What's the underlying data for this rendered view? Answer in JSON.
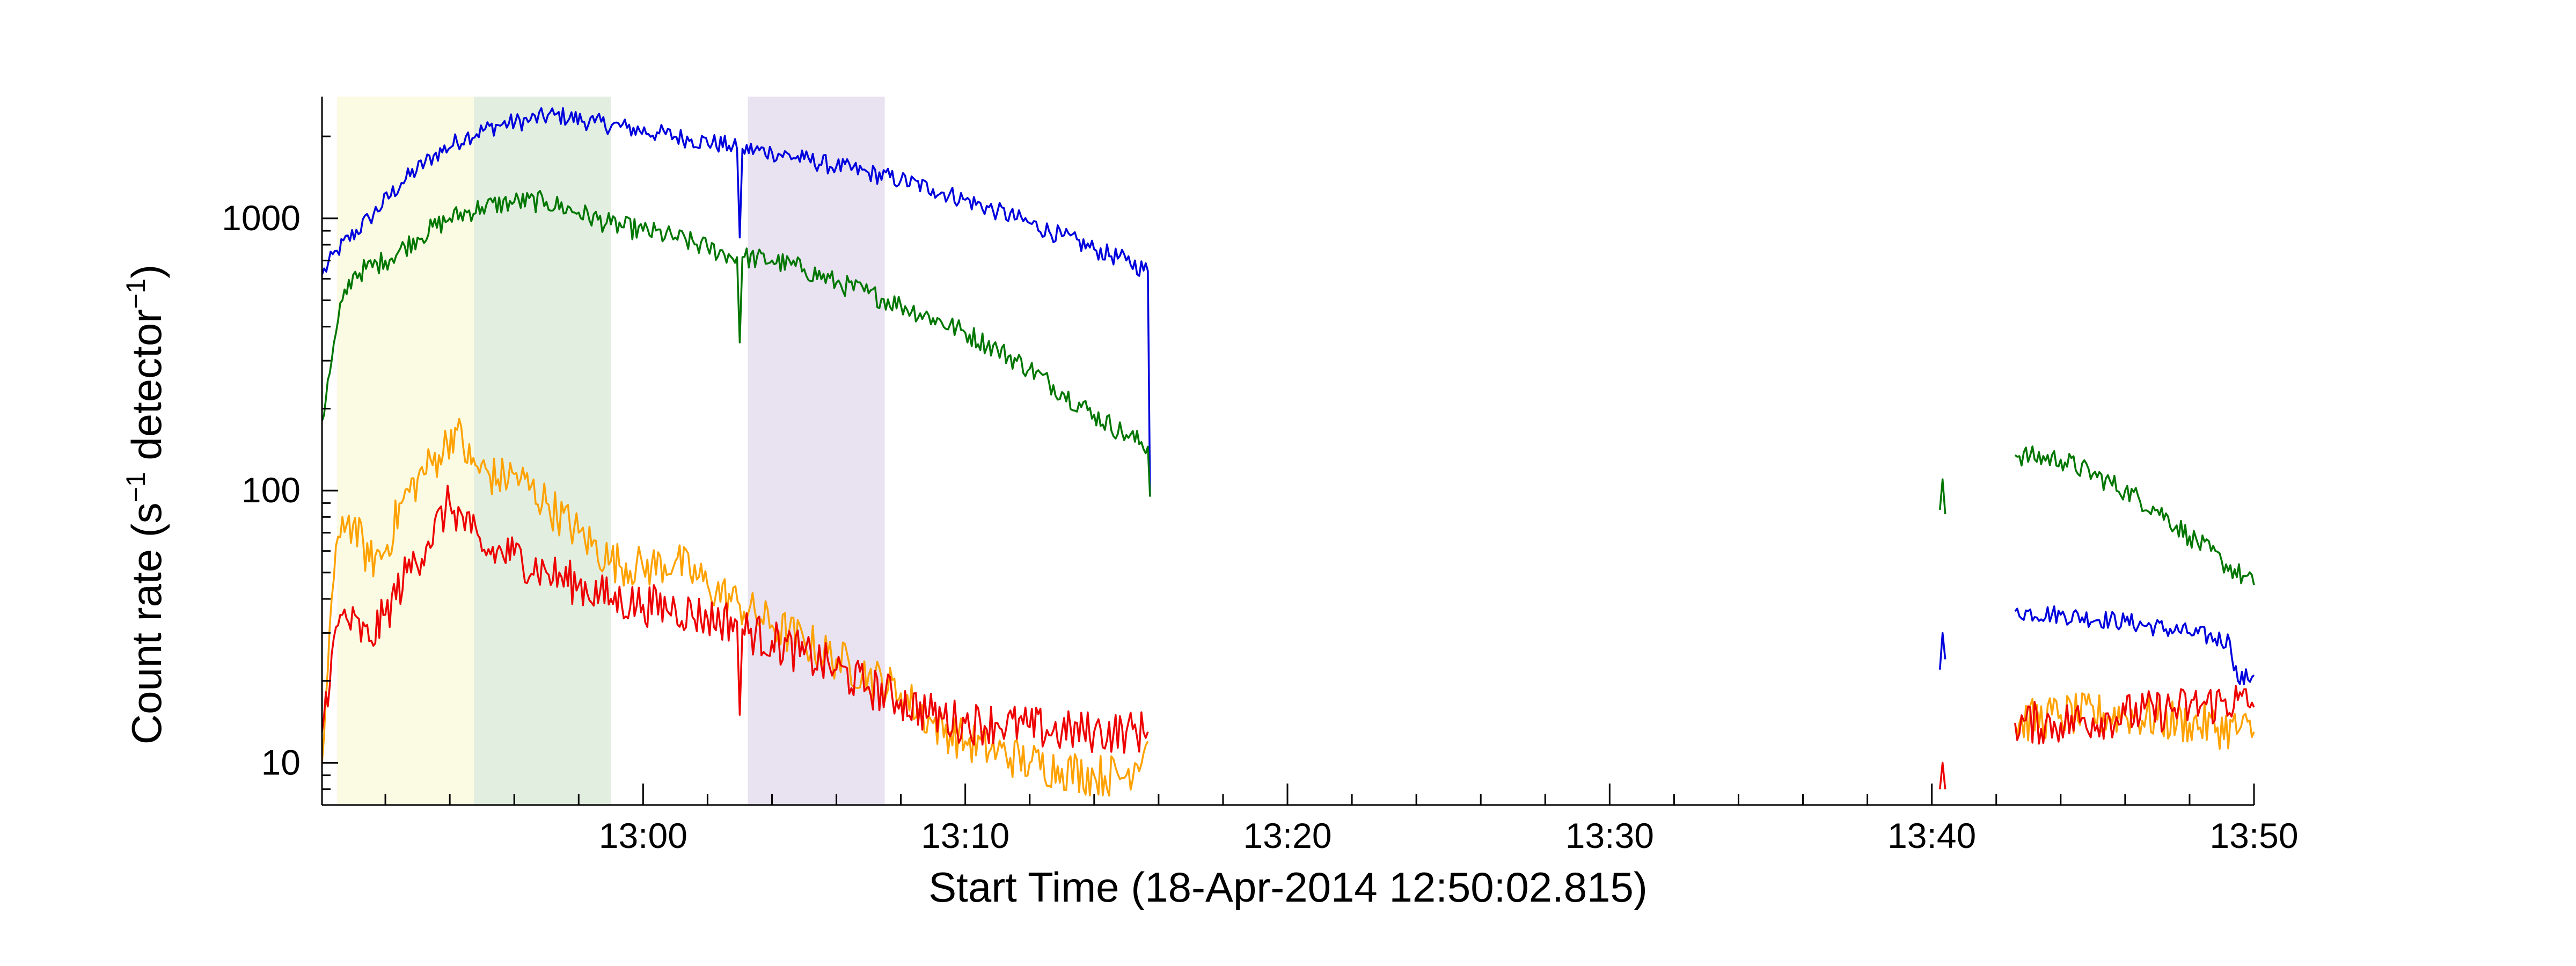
{
  "chart_data": {
    "type": "line",
    "xlabel": "Start Time (18-Apr-2014 12:50:02.815)",
    "ylabel": {
      "prefix": "Count rate (s",
      "sup1": "−1",
      "middle": " detector",
      "sup2": "−1",
      "suffix": ")"
    },
    "y_scale": "log",
    "ylim": [
      7,
      2800
    ],
    "y_ticks": [
      {
        "value": 10,
        "label": "10"
      },
      {
        "value": 100,
        "label": "100"
      },
      {
        "value": 1000,
        "label": "1000"
      }
    ],
    "xlim": [
      "12:50:02",
      "13:50:00"
    ],
    "x_ticks": [
      {
        "time": "13:00",
        "label": "13:00"
      },
      {
        "time": "13:10",
        "label": "13:10"
      },
      {
        "time": "13:20",
        "label": "13:20"
      },
      {
        "time": "13:30",
        "label": "13:30"
      },
      {
        "time": "13:40",
        "label": "13:40"
      },
      {
        "time": "13:50",
        "label": "13:50"
      }
    ],
    "grid": false,
    "legend": "none",
    "shaded_intervals": [
      {
        "start": "12:50:30",
        "end": "12:54:45",
        "color": "#fafbe2"
      },
      {
        "start": "12:54:45",
        "end": "12:59:00",
        "color": "#e2eee0"
      },
      {
        "start": "13:03:15",
        "end": "13:07:30",
        "color": "#e8e2f1"
      }
    ],
    "series": [
      {
        "color": "#0000dd",
        "noise": 0.035,
        "segments": [
          [
            [
              "12:50:02",
              620
            ],
            [
              "12:50:30",
              760
            ],
            [
              "12:51:30",
              1000
            ],
            [
              "12:52:30",
              1350
            ],
            [
              "12:53:30",
              1700
            ],
            [
              "12:54:30",
              2000
            ],
            [
              "12:55:30",
              2200
            ],
            [
              "12:56:30",
              2300
            ],
            [
              "12:57:15",
              2400
            ],
            [
              "12:58:30",
              2250
            ],
            [
              "12:59:30",
              2150
            ],
            [
              "13:00:30",
              2050
            ],
            [
              "13:01:30",
              1950
            ],
            [
              "13:02:40",
              1850
            ],
            [
              "13:02:55",
              1800
            ],
            [
              "13:03:00",
              850
            ],
            [
              "13:03:05",
              1800
            ],
            [
              "13:04:00",
              1750
            ],
            [
              "13:05:00",
              1650
            ],
            [
              "13:06:00",
              1550
            ],
            [
              "13:07:00",
              1470
            ],
            [
              "13:08:00",
              1380
            ],
            [
              "13:09:00",
              1280
            ],
            [
              "13:10:00",
              1170
            ],
            [
              "13:11:00",
              1060
            ],
            [
              "13:12:00",
              960
            ],
            [
              "13:13:00",
              860
            ],
            [
              "13:14:00",
              770
            ],
            [
              "13:15:00",
              700
            ],
            [
              "13:15:40",
              640
            ],
            [
              "13:15:44",
              95
            ]
          ],
          [
            [
              "13:40:15",
              22
            ],
            [
              "13:40:20",
              30
            ],
            [
              "13:40:25",
              24
            ]
          ],
          [
            [
              "13:42:35",
              36
            ],
            [
              "13:44:00",
              35
            ],
            [
              "13:46:00",
              33
            ],
            [
              "13:48:00",
              30
            ],
            [
              "13:49:15",
              28
            ],
            [
              "13:49:30",
              20
            ],
            [
              "13:50:00",
              21
            ]
          ]
        ]
      },
      {
        "color": "#007700",
        "noise": 0.04,
        "segments": [
          [
            [
              "12:50:02",
              180
            ],
            [
              "12:50:20",
              300
            ],
            [
              "12:50:40",
              500
            ],
            [
              "12:51:00",
              620
            ],
            [
              "12:52:00",
              700
            ],
            [
              "12:53:00",
              850
            ],
            [
              "12:54:00",
              1000
            ],
            [
              "12:55:00",
              1100
            ],
            [
              "12:56:00",
              1150
            ],
            [
              "12:57:00",
              1150
            ],
            [
              "12:58:00",
              1050
            ],
            [
              "12:59:00",
              950
            ],
            [
              "13:00:00",
              900
            ],
            [
              "13:01:00",
              850
            ],
            [
              "13:02:00",
              780
            ],
            [
              "13:02:55",
              720
            ],
            [
              "13:03:00",
              350
            ],
            [
              "13:03:05",
              720
            ],
            [
              "13:04:00",
              700
            ],
            [
              "13:05:00",
              650
            ],
            [
              "13:06:00",
              580
            ],
            [
              "13:07:00",
              530
            ],
            [
              "13:08:00",
              480
            ],
            [
              "13:09:00",
              430
            ],
            [
              "13:10:00",
              380
            ],
            [
              "13:11:00",
              330
            ],
            [
              "13:12:00",
              280
            ],
            [
              "13:13:00",
              230
            ],
            [
              "13:14:00",
              190
            ],
            [
              "13:15:00",
              160
            ],
            [
              "13:15:40",
              145
            ],
            [
              "13:15:44",
              95
            ]
          ],
          [
            [
              "13:40:15",
              85
            ],
            [
              "13:40:20",
              110
            ],
            [
              "13:40:25",
              82
            ]
          ],
          [
            [
              "13:42:35",
              135
            ],
            [
              "13:44:00",
              130
            ],
            [
              "13:45:00",
              115
            ],
            [
              "13:46:00",
              100
            ],
            [
              "13:47:00",
              85
            ],
            [
              "13:48:00",
              68
            ],
            [
              "13:49:00",
              55
            ],
            [
              "13:50:00",
              45
            ]
          ]
        ]
      },
      {
        "color": "#ffa200",
        "noise": 0.08,
        "segments": [
          [
            [
              "12:50:02",
              10
            ],
            [
              "12:50:20",
              40
            ],
            [
              "12:50:40",
              80
            ],
            [
              "12:51:00",
              75
            ],
            [
              "12:51:30",
              55
            ],
            [
              "12:52:00",
              60
            ],
            [
              "12:52:30",
              90
            ],
            [
              "12:53:00",
              110
            ],
            [
              "12:53:40",
              135
            ],
            [
              "12:54:10",
              170
            ],
            [
              "12:54:40",
              125
            ],
            [
              "12:55:30",
              110
            ],
            [
              "12:56:00",
              115
            ],
            [
              "12:57:00",
              90
            ],
            [
              "12:58:00",
              70
            ],
            [
              "12:59:00",
              55
            ],
            [
              "13:00:00",
              52
            ],
            [
              "13:01:00",
              55
            ],
            [
              "13:02:00",
              45
            ],
            [
              "13:03:00",
              38
            ],
            [
              "13:04:00",
              32
            ],
            [
              "13:05:00",
              28
            ],
            [
              "13:06:00",
              24
            ],
            [
              "13:07:00",
              21
            ],
            [
              "13:08:00",
              18
            ],
            [
              "13:09:00",
              14
            ],
            [
              "13:10:00",
              12
            ],
            [
              "13:11:00",
              11
            ],
            [
              "13:12:00",
              10
            ],
            [
              "13:13:00",
              9.5
            ],
            [
              "13:14:00",
              9
            ],
            [
              "13:15:00",
              9
            ],
            [
              "13:15:40",
              12
            ]
          ],
          [
            [
              "13:42:35",
              14
            ],
            [
              "13:44:00",
              15
            ],
            [
              "13:46:00",
              15
            ],
            [
              "13:48:00",
              14
            ],
            [
              "13:50:00",
              13
            ]
          ]
        ]
      },
      {
        "color": "#ee0000",
        "noise": 0.08,
        "segments": [
          [
            [
              "12:50:02",
              13
            ],
            [
              "12:50:20",
              25
            ],
            [
              "12:50:40",
              35
            ],
            [
              "12:51:30",
              28
            ],
            [
              "12:52:00",
              35
            ],
            [
              "12:52:40",
              50
            ],
            [
              "12:53:20",
              65
            ],
            [
              "12:54:00",
              90
            ],
            [
              "12:54:40",
              70
            ],
            [
              "12:55:00",
              60
            ],
            [
              "12:56:00",
              58
            ],
            [
              "12:57:00",
              50
            ],
            [
              "12:58:00",
              45
            ],
            [
              "12:59:00",
              40
            ],
            [
              "13:00:00",
              38
            ],
            [
              "13:01:00",
              37
            ],
            [
              "13:02:00",
              34
            ],
            [
              "13:02:55",
              33
            ],
            [
              "13:03:00",
              15
            ],
            [
              "13:03:05",
              31
            ],
            [
              "13:04:00",
              28
            ],
            [
              "13:05:00",
              25
            ],
            [
              "13:06:00",
              22
            ],
            [
              "13:07:00",
              19
            ],
            [
              "13:08:00",
              17
            ],
            [
              "13:09:00",
              15
            ],
            [
              "13:10:00",
              14
            ],
            [
              "13:11:00",
              14
            ],
            [
              "13:12:00",
              13.5
            ],
            [
              "13:13:00",
              13
            ],
            [
              "13:14:00",
              13
            ],
            [
              "13:15:00",
              13
            ],
            [
              "13:15:40",
              13
            ]
          ],
          [
            [
              "13:40:15",
              8
            ],
            [
              "13:40:20",
              10
            ],
            [
              "13:40:25",
              8
            ]
          ],
          [
            [
              "13:42:35",
              14
            ],
            [
              "13:44:00",
              14
            ],
            [
              "13:46:00",
              15
            ],
            [
              "13:48:00",
              16
            ],
            [
              "13:49:30",
              17
            ],
            [
              "13:50:00",
              16
            ]
          ]
        ]
      }
    ]
  }
}
